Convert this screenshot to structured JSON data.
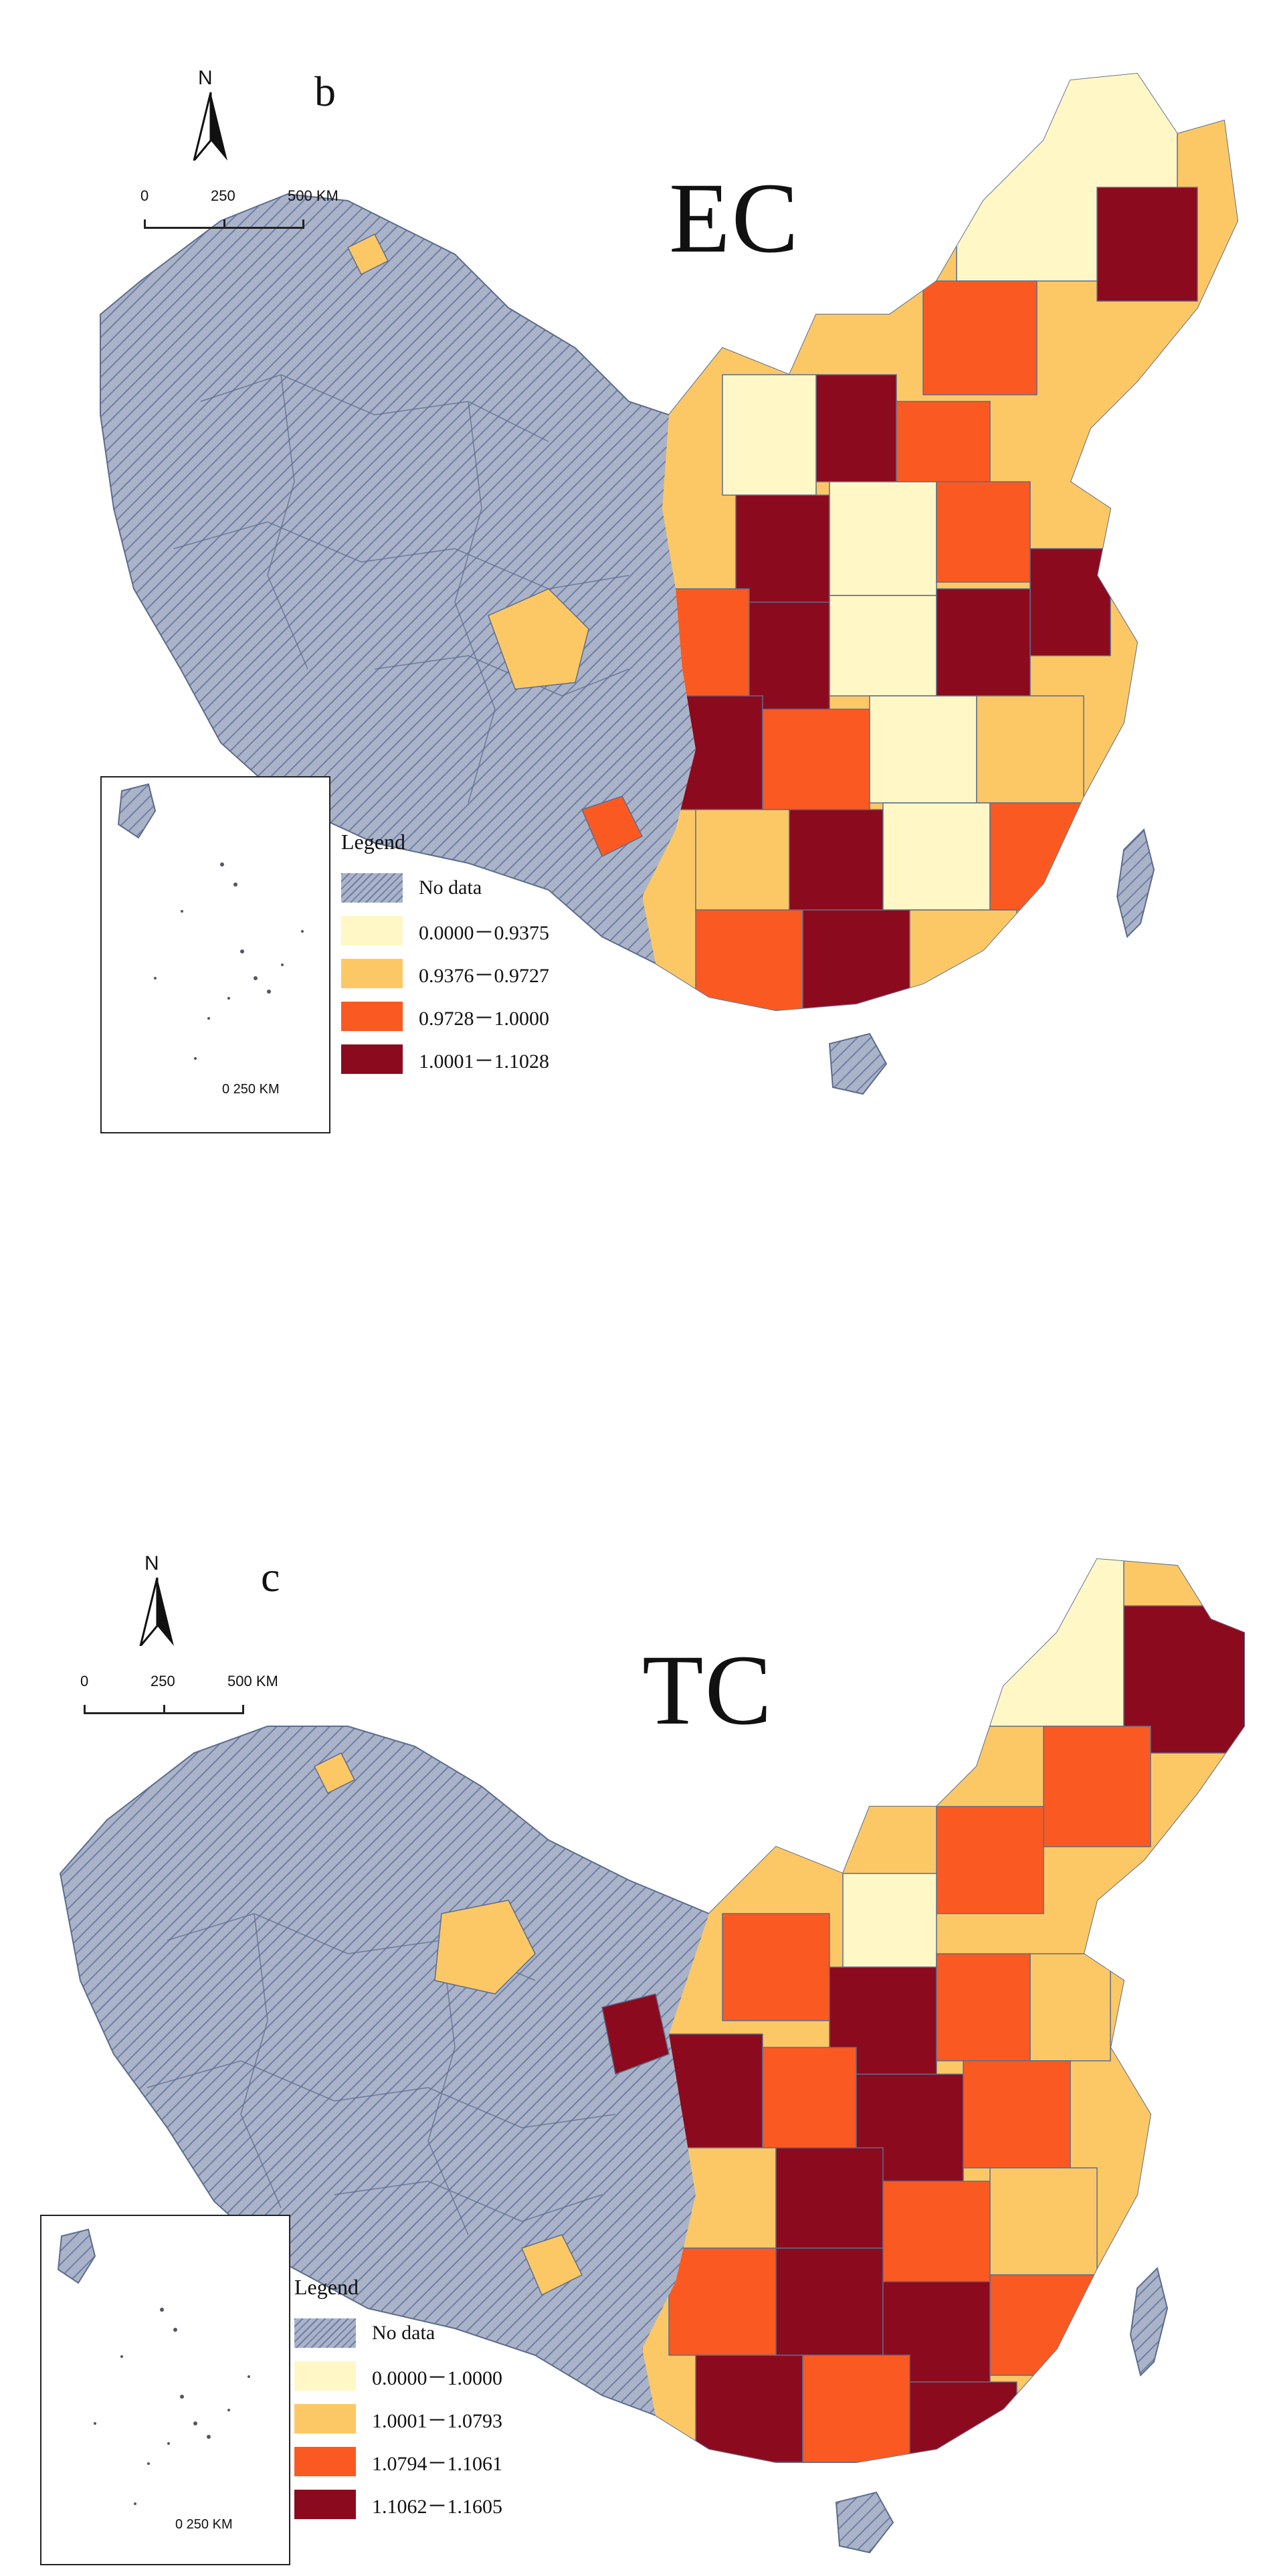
{
  "colors": {
    "no_data": "#aab3c8",
    "no_data_hatch": "#6e7fa6",
    "border": "#5c6c8c",
    "class1": "#fff7c6",
    "class2": "#fcc866",
    "class3": "#fa5a22",
    "class4": "#8c0a1e"
  },
  "panels": [
    {
      "id": "b",
      "letter": "b",
      "title": "EC",
      "north": "N",
      "scale": {
        "labels": [
          "0",
          "250",
          "500 KM"
        ]
      },
      "inset_scale": "0  250 KM",
      "legend": {
        "title": "Legend",
        "items": [
          {
            "label": "No data",
            "class": "no_data"
          },
          {
            "label": "0.0000－0.9375",
            "class": "class1"
          },
          {
            "label": "0.9376－0.9727",
            "class": "class2"
          },
          {
            "label": "0.9728－1.0000",
            "class": "class3"
          },
          {
            "label": "1.0001－1.1028",
            "class": "class4"
          }
        ]
      }
    },
    {
      "id": "c",
      "letter": "c",
      "title": "TC",
      "north": "N",
      "scale": {
        "labels": [
          "0",
          "250",
          "500 KM"
        ]
      },
      "inset_scale": "0  250 KM",
      "legend": {
        "title": "Legend",
        "items": [
          {
            "label": "No data",
            "class": "no_data"
          },
          {
            "label": "0.0000－1.0000",
            "class": "class1"
          },
          {
            "label": "1.0001－1.0793",
            "class": "class2"
          },
          {
            "label": "1.0794－1.1061",
            "class": "class3"
          },
          {
            "label": "1.1062－1.1605",
            "class": "class4"
          }
        ]
      }
    }
  ]
}
